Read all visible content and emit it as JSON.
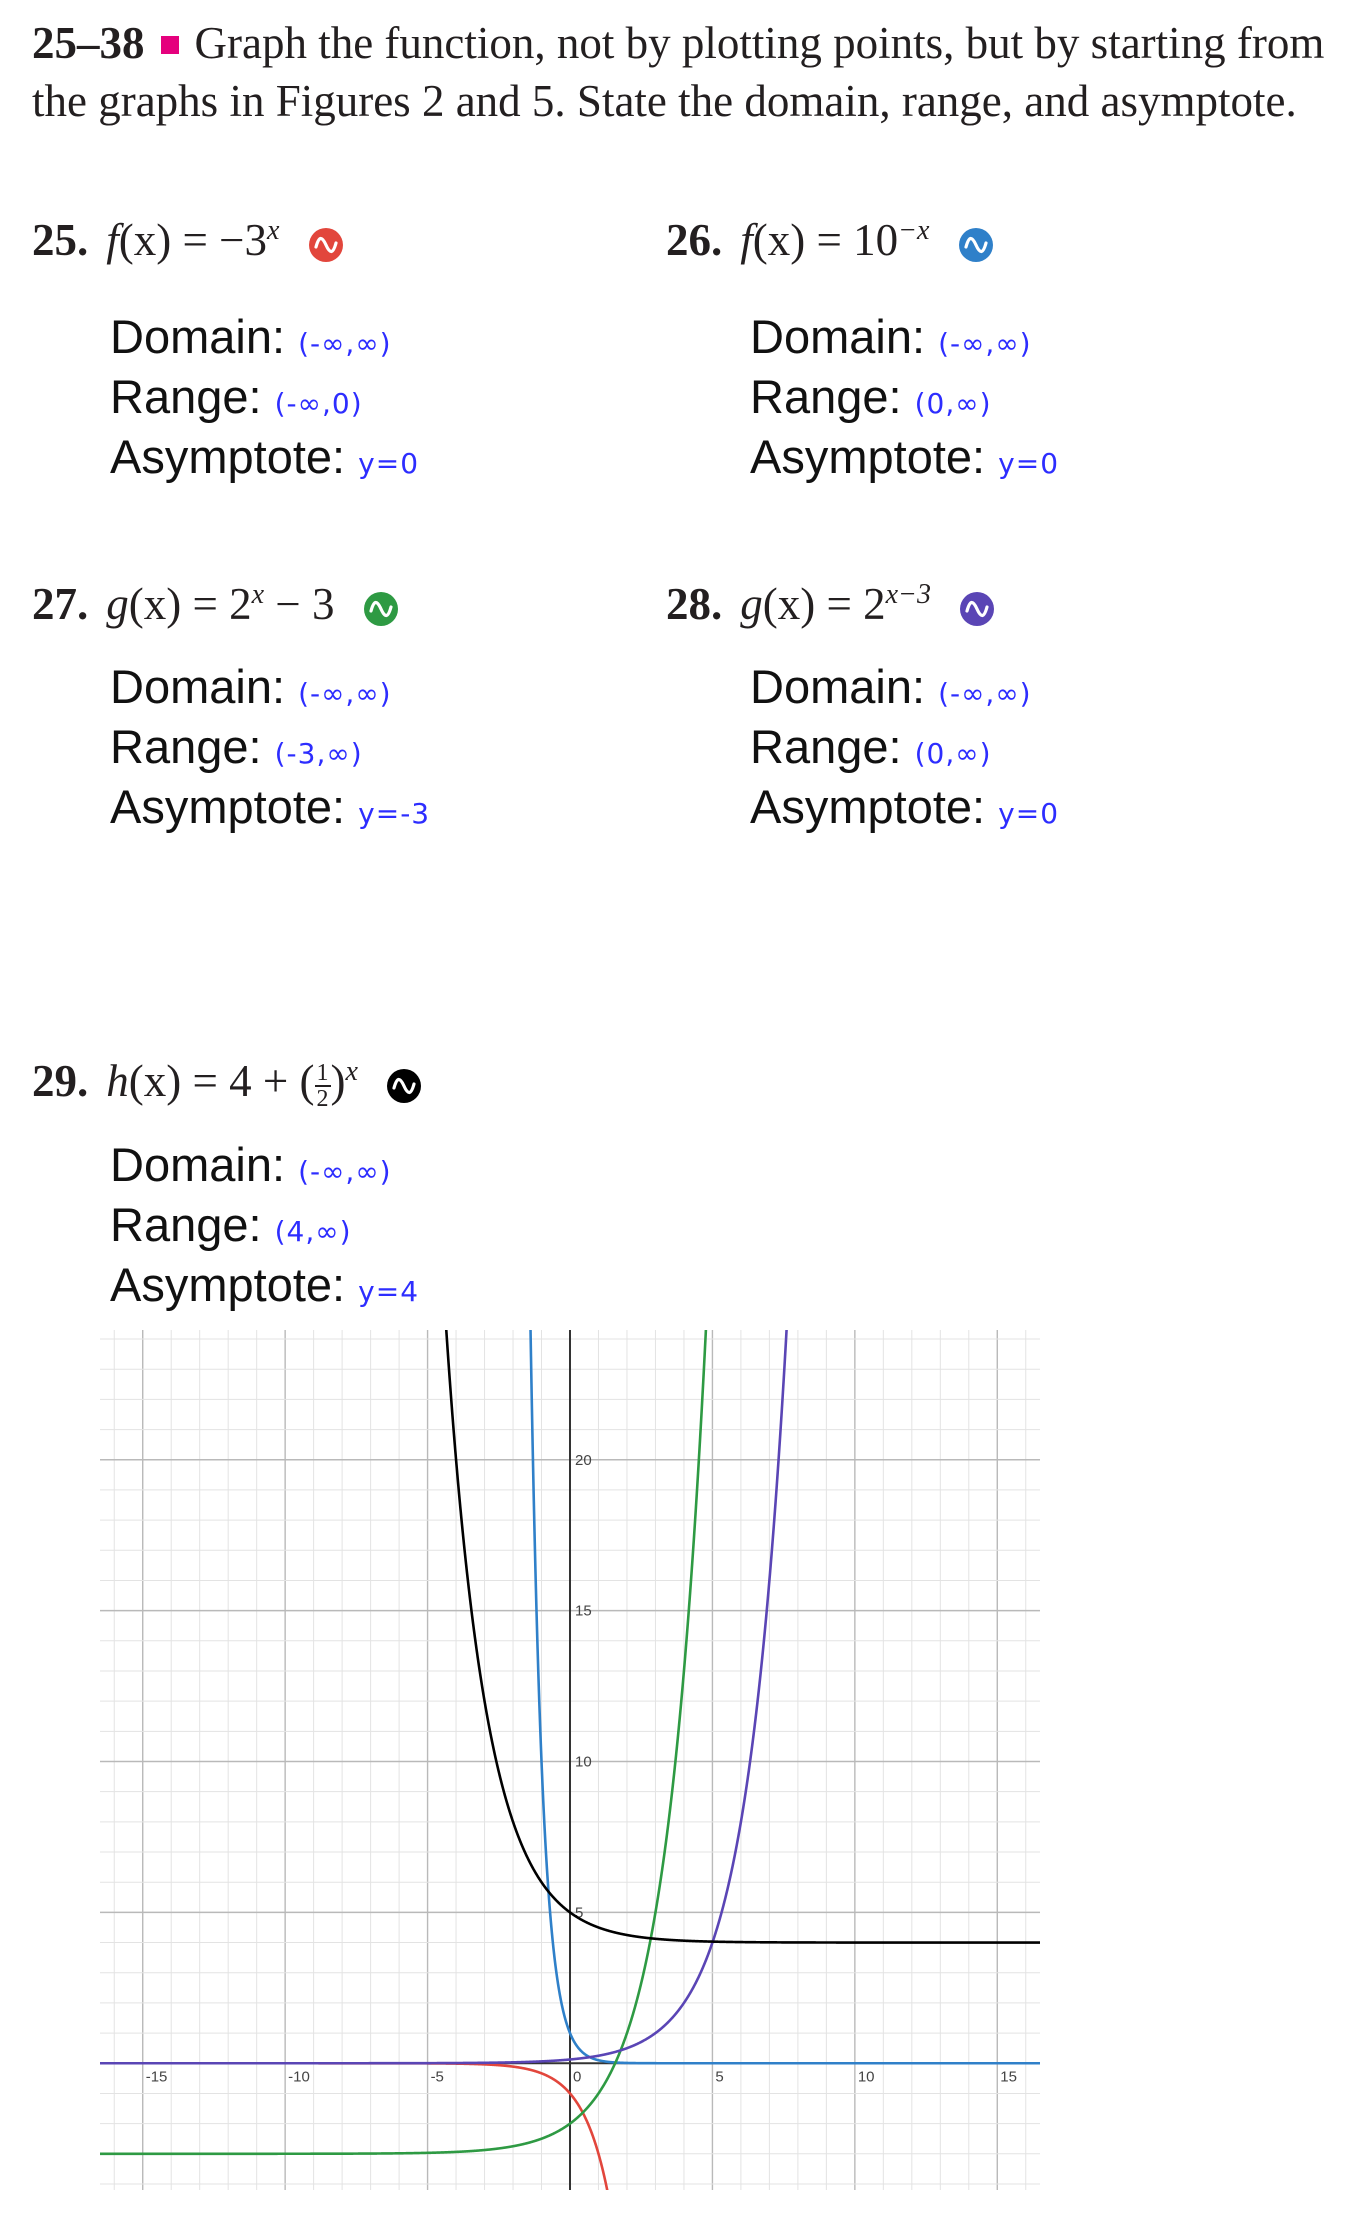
{
  "header": {
    "range": "25–38",
    "instructions": "Graph the function, not by plotting points, but by starting from the graphs in Figures 2 and 5. State the domain, range, and asymptote."
  },
  "labels": {
    "domain": "Domain:",
    "range": "Range:",
    "asymptote": "Asymptote:"
  },
  "problems": [
    {
      "number": "25.",
      "name": "f",
      "arg": "(x)",
      "eq": "=",
      "rhs": "−3",
      "sup": "x",
      "icon": "red-sine-wave-icon",
      "icon_color": "#e2463c",
      "domain": "(-∞,∞)",
      "range": "(-∞,0)",
      "asymptote": "y=0"
    },
    {
      "number": "26.",
      "name": "f",
      "arg": "(x)",
      "eq": "=",
      "rhs": "10",
      "sup": "−x",
      "icon": "blue-sine-wave-icon",
      "icon_color": "#2f80c9",
      "domain": "(-∞,∞)",
      "range": "(0,∞)",
      "asymptote": "y=0"
    },
    {
      "number": "27.",
      "name": "g",
      "arg": "(x)",
      "eq": "=",
      "rhs": "2",
      "sup": "x",
      "tail": " − 3",
      "icon": "green-sine-wave-icon",
      "icon_color": "#2e9a43",
      "domain": "(-∞,∞)",
      "range": "(-3,∞)",
      "asymptote": "y=-3"
    },
    {
      "number": "28.",
      "name": "g",
      "arg": "(x)",
      "eq": "=",
      "rhs": "2",
      "sup": "x−3",
      "icon": "purple-sine-wave-icon",
      "icon_color": "#5a45b5",
      "domain": "(-∞,∞)",
      "range": "(0,∞)",
      "asymptote": "y=0"
    },
    {
      "number": "29.",
      "name": "h",
      "arg": "(x)",
      "eq": "=",
      "rhs": "4 + (",
      "frac_num": "1",
      "frac_den": "2",
      "rhs_close": ")",
      "sup": "x",
      "icon": "black-sine-wave-icon",
      "icon_color": "#000000",
      "domain": "(-∞,∞)",
      "range": "(4,∞)",
      "asymptote": "y=4"
    }
  ],
  "chart_data": {
    "type": "line",
    "xlim": [
      -16.5,
      16.5
    ],
    "ylim": [
      -4.2,
      24.3
    ],
    "x_ticks": [
      -15,
      -10,
      -5,
      0,
      5,
      10,
      15
    ],
    "x_tick_labels": [
      "-15",
      "-10",
      "-5",
      "0",
      "5",
      "10",
      "15"
    ],
    "y_ticks": [
      5,
      10,
      15,
      20
    ],
    "y_tick_labels": [
      "5",
      "10",
      "15",
      "20"
    ],
    "grid": true,
    "series": [
      {
        "expr": "-3^x",
        "color": "#e2463c"
      },
      {
        "expr": "10^-x",
        "color": "#2f80c9"
      },
      {
        "expr": "2^x - 3",
        "color": "#2e9a43"
      },
      {
        "expr": "2^(x-3)",
        "color": "#5a45b5"
      },
      {
        "expr": "4 + (1/2)^x",
        "color": "#000000"
      }
    ]
  }
}
